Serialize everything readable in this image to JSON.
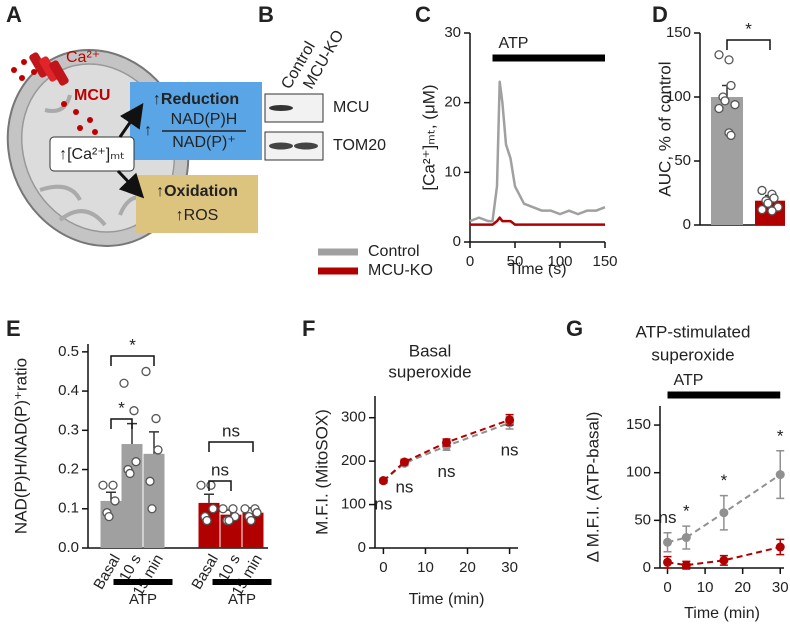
{
  "diagram": {
    "label": "A",
    "ion": "Ca²⁺",
    "channel": "MCU",
    "center": "↑[Ca²⁺]ₘₜ",
    "reduction": {
      "title": "↑Reduction",
      "ratio_prefix": "↑",
      "numerator": "NAD(P)H",
      "denominator": "NAD(P)⁺"
    },
    "oxidation": {
      "title": "↑Oxidation",
      "product": "↑ROS"
    }
  },
  "blot": {
    "label": "B",
    "lanes": [
      "Control",
      "MCU-KO"
    ],
    "rows": [
      "MCU",
      "TOM20"
    ]
  },
  "chart_data": [
    {
      "type": "line",
      "label": "C",
      "ylabel": "[Ca²⁺]ₘₜ, (μM)",
      "xlabel": "Time (s)",
      "x": [
        0,
        10,
        20,
        25,
        30,
        33,
        36,
        40,
        45,
        50,
        60,
        70,
        80,
        90,
        100,
        110,
        120,
        130,
        140,
        150
      ],
      "series": [
        {
          "name": "Control",
          "color": "#a0a0a0",
          "values": [
            3,
            3.5,
            3,
            3,
            8,
            23,
            20,
            14,
            12,
            8,
            5.5,
            5,
            4.5,
            4.5,
            4,
            4.5,
            4,
            4.5,
            4.5,
            5
          ]
        },
        {
          "name": "MCU-KO",
          "color": "#b00000",
          "values": [
            2.5,
            2.5,
            2.5,
            2.5,
            3,
            3.5,
            3,
            3,
            3,
            2.5,
            2.5,
            2.5,
            2.5,
            2.5,
            2.5,
            2.5,
            2.5,
            2.5,
            2.5,
            2.5
          ]
        }
      ],
      "xlim": [
        0,
        150
      ],
      "ylim": [
        0,
        30
      ],
      "xticks": [
        0,
        50,
        100,
        150
      ],
      "yticks": [
        0,
        10,
        20,
        30
      ],
      "annotations": [
        {
          "text": "ATP",
          "x": [
            25,
            150
          ]
        }
      ],
      "legend": "bottom-left"
    },
    {
      "type": "bar",
      "label": "D",
      "ylabel": "AUC, % of control",
      "categories": [
        null,
        null
      ],
      "values": [
        100,
        19
      ],
      "errors": [
        9,
        4
      ],
      "colors": [
        "#a0a0a0",
        "#b00000"
      ],
      "points": [
        [
          133,
          129,
          109,
          100,
          97,
          94,
          91,
          72,
          70
        ],
        [
          27,
          24,
          21,
          19,
          17,
          14,
          12,
          11
        ]
      ],
      "ylim": [
        0,
        150
      ],
      "yticks": [
        0,
        50,
        100,
        150
      ],
      "comparisons": [
        {
          "pair": [
            0,
            1
          ],
          "label": "*"
        }
      ]
    },
    {
      "type": "bar",
      "label": "E",
      "ylabel": "NAD(P)H/NAD(P)⁺ratio",
      "categories": [
        "Basal",
        "10 s",
        "15 min",
        "Basal",
        "10 s",
        "15 min"
      ],
      "values": [
        0.12,
        0.265,
        0.24,
        0.115,
        0.085,
        0.09
      ],
      "errors": [
        0.022,
        0.052,
        0.056,
        0.022,
        0.012,
        0.012
      ],
      "colors": [
        "#a0a0a0",
        "#a0a0a0",
        "#a0a0a0",
        "#b00000",
        "#b00000",
        "#b00000"
      ],
      "points": [
        [
          0.16,
          0.16,
          0.12,
          0.09,
          0.08
        ],
        [
          0.42,
          0.35,
          0.22,
          0.2,
          0.19
        ],
        [
          0.45,
          0.33,
          0.25,
          0.17,
          0.1
        ],
        [
          0.16,
          0.16,
          0.1,
          0.08,
          0.07
        ],
        [
          0.1,
          0.1,
          0.08,
          0.07,
          0.07
        ],
        [
          0.1,
          0.1,
          0.09,
          0.08,
          0.07
        ]
      ],
      "ylim": [
        0,
        0.52
      ],
      "yticks": [
        {
          "value": 0,
          "label": "0.0"
        },
        0.1,
        0.2,
        0.3,
        0.4,
        0.5
      ],
      "comparisons": [
        {
          "pair": [
            0,
            1
          ],
          "label": "*"
        },
        {
          "pair": [
            0,
            2
          ],
          "label": "*"
        },
        {
          "pair": [
            3,
            4
          ],
          "label": "ns"
        },
        {
          "pair": [
            3,
            5
          ],
          "label": "ns"
        }
      ],
      "groups": [
        {
          "label": "ATP",
          "members": [
            1,
            2
          ]
        },
        {
          "label": "ATP",
          "members": [
            4,
            5
          ]
        }
      ]
    },
    {
      "type": "line",
      "label": "F",
      "title": [
        "Basal",
        "superoxide"
      ],
      "ylabel": "M.F.I. (MitoSOX)",
      "xlabel": "Time (min)",
      "x": [
        0,
        5,
        15,
        30
      ],
      "series": [
        {
          "color": "#909090",
          "values": [
            155,
            195,
            235,
            288
          ],
          "errors": [
            5,
            6,
            10,
            14
          ]
        },
        {
          "color": "#b00000",
          "values": [
            155,
            198,
            243,
            295
          ],
          "errors": [
            5,
            6,
            8,
            12
          ]
        }
      ],
      "xlim": [
        -2,
        32
      ],
      "ylim": [
        0,
        350
      ],
      "xticks": [
        0,
        10,
        20,
        30
      ],
      "yticks": [
        0,
        100,
        200,
        300
      ],
      "dashed": true,
      "significance": [
        "ns",
        "ns",
        "ns",
        "ns"
      ]
    },
    {
      "type": "line",
      "label": "G",
      "title": [
        "ATP-stimulated",
        "superoxide"
      ],
      "ylabel": "Δ M.F.I. (ATP-basal)",
      "xlabel": "Time (min)",
      "x": [
        0,
        5,
        15,
        30
      ],
      "series": [
        {
          "color": "#909090",
          "values": [
            27,
            32,
            58,
            98
          ],
          "errors": [
            10,
            12,
            18,
            25
          ]
        },
        {
          "color": "#b00000",
          "values": [
            6,
            3,
            8,
            22
          ],
          "errors": [
            6,
            4,
            5,
            8
          ]
        }
      ],
      "xlim": [
        -2,
        31
      ],
      "ylim": [
        0,
        170
      ],
      "xticks": [
        0,
        10,
        20,
        30
      ],
      "yticks": [
        0,
        50,
        100,
        150
      ],
      "dashed": true,
      "significance": [
        "ns",
        "*",
        "*",
        "*"
      ],
      "annotations": [
        {
          "text": "ATP",
          "x": [
            0,
            30
          ]
        }
      ]
    }
  ]
}
